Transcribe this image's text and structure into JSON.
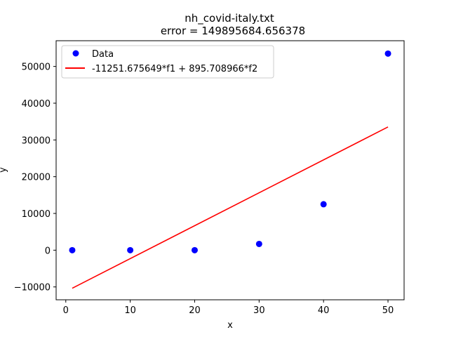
{
  "chart_data": {
    "type": "scatter",
    "title_lines": [
      "nh_covid-italy.txt",
      "error  = 149895684.656378"
    ],
    "xlabel": "x",
    "ylabel": "y",
    "xlim": [
      -1.5,
      52.5
    ],
    "ylim": [
      -13500,
      57000
    ],
    "xticks": [
      0,
      10,
      20,
      30,
      40,
      50
    ],
    "yticks": [
      -10000,
      0,
      10000,
      20000,
      30000,
      40000,
      50000
    ],
    "grid": false,
    "legend_position": "top-left",
    "series": [
      {
        "name": "Data",
        "kind": "scatter",
        "color": "#0000ff",
        "x": [
          1,
          10,
          20,
          30,
          40,
          50
        ],
        "y": [
          0,
          0,
          0,
          1700,
          12500,
          53500
        ]
      },
      {
        "name": "-11251.675649*f1 + 895.708966*f2",
        "kind": "line",
        "color": "#ff0000",
        "x": [
          1,
          50
        ],
        "y": [
          -10356,
          33534
        ]
      }
    ]
  }
}
